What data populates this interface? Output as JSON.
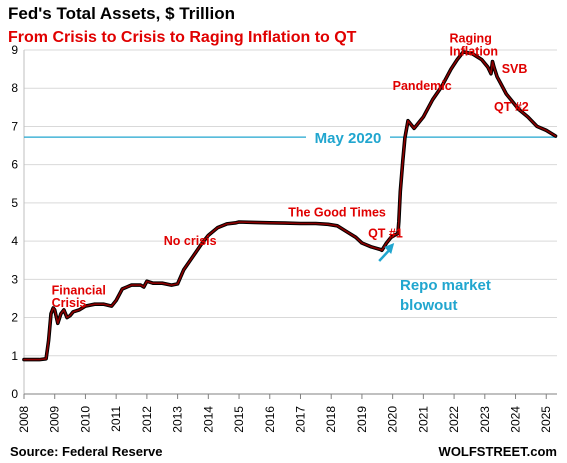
{
  "chart_data": {
    "type": "line",
    "title": "Fed's Total Assets, $ Trillion",
    "subtitle": "From Crisis to Crisis to Raging Inflation to QT",
    "xlabel": "",
    "ylabel": "",
    "x_ticks": [
      "2008",
      "2009",
      "2010",
      "2011",
      "2012",
      "2013",
      "2014",
      "2015",
      "2016",
      "2017",
      "2018",
      "2019",
      "2020",
      "2021",
      "2022",
      "2023",
      "2024",
      "2025"
    ],
    "y_ticks": [
      "0",
      "1",
      "2",
      "3",
      "4",
      "5",
      "6",
      "7",
      "8",
      "9"
    ],
    "xlim": [
      2008,
      2025.35
    ],
    "ylim": [
      0,
      9
    ],
    "grid": true,
    "series": [
      {
        "color": "#8b0000",
        "x": [
          2008.0,
          2008.5,
          2008.72,
          2008.8,
          2008.88,
          2008.95,
          2009.0,
          2009.1,
          2009.2,
          2009.3,
          2009.4,
          2009.5,
          2009.6,
          2009.8,
          2010.0,
          2010.3,
          2010.6,
          2010.85,
          2011.0,
          2011.2,
          2011.5,
          2011.8,
          2011.9,
          2012.0,
          2012.2,
          2012.5,
          2012.8,
          2013.0,
          2013.2,
          2013.5,
          2013.8,
          2014.0,
          2014.3,
          2014.6,
          2014.9,
          2015.0,
          2015.5,
          2016.0,
          2016.5,
          2017.0,
          2017.5,
          2017.9,
          2018.2,
          2018.5,
          2018.8,
          2019.0,
          2019.3,
          2019.6,
          2019.65,
          2019.8,
          2019.95,
          2020.1,
          2020.17,
          2020.2,
          2020.25,
          2020.33,
          2020.4,
          2020.5,
          2020.7,
          2021.0,
          2021.3,
          2021.6,
          2021.9,
          2022.1,
          2022.3,
          2022.6,
          2022.9,
          2023.1,
          2023.2,
          2023.25,
          2023.3,
          2023.4,
          2023.5,
          2023.7,
          2023.9,
          2024.1,
          2024.4,
          2024.7,
          2025.0,
          2025.3
        ],
        "y": [
          0.9,
          0.9,
          0.92,
          1.4,
          2.1,
          2.25,
          2.2,
          1.85,
          2.1,
          2.2,
          2.0,
          2.05,
          2.15,
          2.2,
          2.3,
          2.35,
          2.35,
          2.3,
          2.45,
          2.75,
          2.85,
          2.85,
          2.8,
          2.95,
          2.9,
          2.9,
          2.85,
          2.88,
          3.25,
          3.6,
          3.95,
          4.15,
          4.35,
          4.45,
          4.48,
          4.5,
          4.49,
          4.48,
          4.47,
          4.46,
          4.46,
          4.44,
          4.4,
          4.25,
          4.1,
          3.95,
          3.85,
          3.78,
          3.76,
          3.95,
          4.1,
          4.17,
          4.2,
          4.5,
          5.3,
          6.1,
          6.7,
          7.15,
          6.95,
          7.25,
          7.7,
          8.05,
          8.5,
          8.75,
          8.95,
          8.9,
          8.75,
          8.55,
          8.38,
          8.7,
          8.55,
          8.3,
          8.15,
          7.85,
          7.65,
          7.45,
          7.25,
          7.0,
          6.9,
          6.75
        ]
      }
    ],
    "reference_line": {
      "value": 6.72,
      "label": "May 2020",
      "color": "#21a6cf"
    },
    "annotations": [
      {
        "text": "Financial",
        "x": 2008.9,
        "y": 2.6
      },
      {
        "text": "Crisis",
        "x": 2008.9,
        "y": 2.27
      },
      {
        "text": "No crisis",
        "x": 2012.55,
        "y": 3.9
      },
      {
        "text": "The Good Times",
        "x": 2016.6,
        "y": 4.65
      },
      {
        "text": "QT #1",
        "x": 2019.2,
        "y": 4.1
      },
      {
        "text": "Pandemic",
        "x": 2020.0,
        "y": 7.95
      },
      {
        "text": "Raging",
        "x": 2021.85,
        "y": 9.2
      },
      {
        "text": "Inflation",
        "x": 2021.85,
        "y": 8.85
      },
      {
        "text": "SVB",
        "x": 2023.55,
        "y": 8.4
      },
      {
        "text": "QT #2",
        "x": 2023.3,
        "y": 7.4
      }
    ],
    "callout": {
      "lines": [
        "Repo market",
        "blowout"
      ],
      "color": "#21a6cf"
    }
  },
  "footer": {
    "source": "Source: Federal Reserve",
    "brand": "WOLFSTREET.com"
  }
}
